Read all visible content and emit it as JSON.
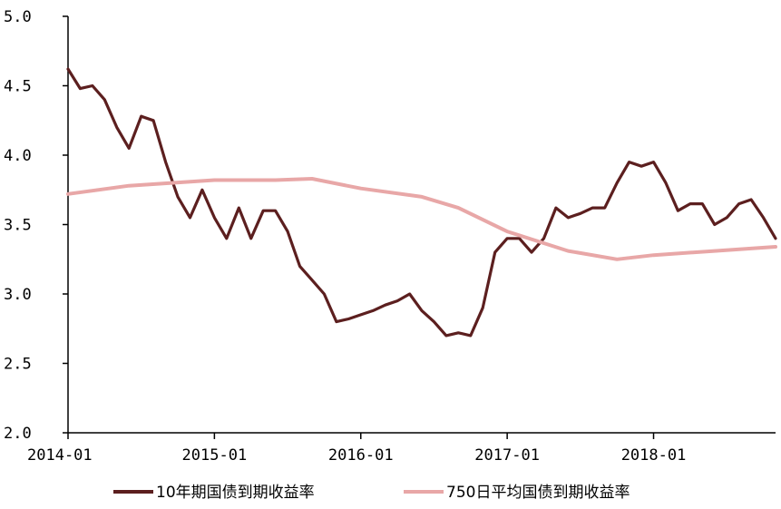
{
  "chart_data": {
    "type": "line",
    "title": "",
    "xlabel": "",
    "ylabel": "",
    "ylim": [
      2.0,
      5.0
    ],
    "y_ticks": [
      "2.0",
      "2.5",
      "3.0",
      "3.5",
      "4.0",
      "4.5",
      "5.0"
    ],
    "y_tick_values": [
      2.0,
      2.5,
      3.0,
      3.5,
      4.0,
      4.5,
      5.0
    ],
    "x_range": [
      "2014-01",
      "2018-11"
    ],
    "x_ticks": [
      "2014-01",
      "2015-01",
      "2016-01",
      "2017-01",
      "2018-01"
    ],
    "grid": false,
    "legend_position": "bottom",
    "series": [
      {
        "name": "10年期国债到期收益率",
        "color": "#5c1f1f",
        "x": [
          "2014-01",
          "2014-02",
          "2014-03",
          "2014-04",
          "2014-05",
          "2014-06",
          "2014-07",
          "2014-08",
          "2014-09",
          "2014-10",
          "2014-11",
          "2014-12",
          "2015-01",
          "2015-02",
          "2015-03",
          "2015-04",
          "2015-05",
          "2015-06",
          "2015-07",
          "2015-08",
          "2015-09",
          "2015-10",
          "2015-11",
          "2015-12",
          "2016-01",
          "2016-02",
          "2016-03",
          "2016-04",
          "2016-05",
          "2016-06",
          "2016-07",
          "2016-08",
          "2016-09",
          "2016-10",
          "2016-11",
          "2016-12",
          "2017-01",
          "2017-02",
          "2017-03",
          "2017-04",
          "2017-05",
          "2017-06",
          "2017-07",
          "2017-08",
          "2017-09",
          "2017-10",
          "2017-11",
          "2017-12",
          "2018-01",
          "2018-02",
          "2018-03",
          "2018-04",
          "2018-05",
          "2018-06",
          "2018-07",
          "2018-08",
          "2018-09",
          "2018-10",
          "2018-11"
        ],
        "values": [
          4.62,
          4.48,
          4.5,
          4.4,
          4.2,
          4.05,
          4.28,
          4.25,
          3.95,
          3.7,
          3.55,
          3.75,
          3.55,
          3.4,
          3.62,
          3.4,
          3.6,
          3.6,
          3.45,
          3.2,
          3.1,
          3.0,
          2.8,
          2.82,
          2.85,
          2.88,
          2.92,
          2.95,
          3.0,
          2.88,
          2.8,
          2.7,
          2.72,
          2.7,
          2.9,
          3.3,
          3.4,
          3.4,
          3.3,
          3.4,
          3.62,
          3.55,
          3.58,
          3.62,
          3.62,
          3.8,
          3.95,
          3.92,
          3.95,
          3.8,
          3.6,
          3.65,
          3.65,
          3.5,
          3.55,
          3.65,
          3.68,
          3.55,
          3.4
        ]
      },
      {
        "name": "750日平均国债到期收益率",
        "color": "#e8a7a7",
        "x": [
          "2014-01",
          "2014-06",
          "2015-01",
          "2015-06",
          "2015-09",
          "2016-01",
          "2016-06",
          "2016-09",
          "2017-01",
          "2017-06",
          "2017-10",
          "2018-01",
          "2018-06",
          "2018-11"
        ],
        "values": [
          3.72,
          3.78,
          3.82,
          3.82,
          3.83,
          3.76,
          3.7,
          3.62,
          3.45,
          3.31,
          3.25,
          3.28,
          3.31,
          3.34
        ]
      }
    ]
  }
}
